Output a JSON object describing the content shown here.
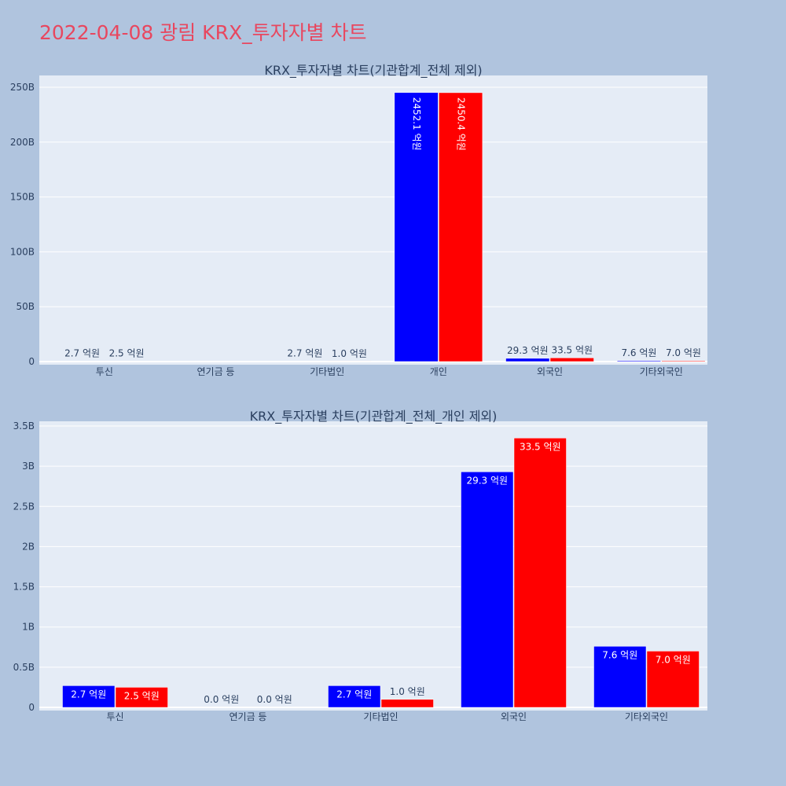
{
  "page": {
    "title": "2022-04-08 광림 KRX_투자자별 차트"
  },
  "colors": {
    "background": "#b0c4de",
    "plot_bg": "#e5ecf6",
    "title": "#e8475f",
    "series_a": "#0000ff",
    "series_b": "#ff0000",
    "text": "#2a3f5f"
  },
  "chart_data": [
    {
      "type": "bar",
      "title": "KRX_투자자별 차트(기관합계_전체 제외)",
      "categories": [
        "투신",
        "연기금 등",
        "기타법인",
        "개인",
        "외국인",
        "기타외국인"
      ],
      "series": [
        {
          "values": [
            0.27,
            null,
            0.27,
            245.21,
            2.93,
            0.76
          ],
          "labels": [
            "2.7 억원",
            "",
            "2.7 억원",
            "2452.1 억원",
            "29.3 억원",
            "7.6 억원"
          ]
        },
        {
          "values": [
            0.25,
            null,
            0.1,
            245.04,
            3.35,
            0.7
          ],
          "labels": [
            "2.5 억원",
            "",
            "1.0 억원",
            "2450.4 억원",
            "33.5 억원",
            "7.0 억원"
          ]
        }
      ],
      "yticks": [
        "0",
        "50B",
        "100B",
        "150B",
        "200B",
        "250B"
      ],
      "ylim": [
        0,
        250
      ],
      "grid": true
    },
    {
      "type": "bar",
      "title": "KRX_투자자별 차트(기관합계_전체_개인 제외)",
      "categories": [
        "투신",
        "연기금 등",
        "기타법인",
        "외국인",
        "기타외국인"
      ],
      "series": [
        {
          "values": [
            0.27,
            0.0,
            0.27,
            2.93,
            0.76
          ],
          "labels": [
            "2.7 억원",
            "0.0 억원",
            "2.7 억원",
            "29.3 억원",
            "7.6 억원"
          ]
        },
        {
          "values": [
            0.25,
            0.0,
            0.1,
            3.35,
            0.7
          ],
          "labels": [
            "2.5 억원",
            "0.0 억원",
            "1.0 억원",
            "33.5 억원",
            "7.0 억원"
          ]
        }
      ],
      "yticks": [
        "0",
        "0.5B",
        "1B",
        "1.5B",
        "2B",
        "2.5B",
        "3B",
        "3.5B"
      ],
      "ylim": [
        0,
        3.5
      ],
      "grid": true
    }
  ]
}
